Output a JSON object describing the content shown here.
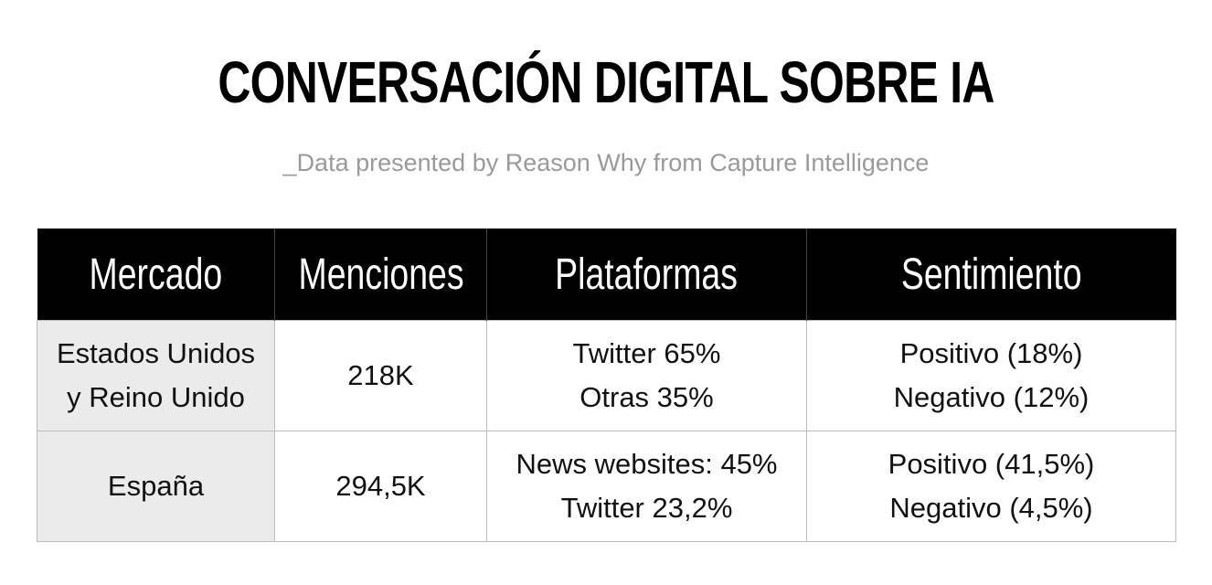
{
  "title": "CONVERSACIÓN DIGITAL SOBRE IA",
  "subtitle": "_Data presented by Reason Why from Capture Intelligence",
  "table": {
    "headers": [
      "Mercado",
      "Menciones",
      "Plataformas",
      "Sentimiento"
    ],
    "rows": [
      {
        "market": [
          "Estados Unidos",
          "y Reino Unido"
        ],
        "mentions": "218K",
        "platforms": [
          "Twitter 65%",
          "Otras 35%"
        ],
        "sentiment": [
          "Positivo (18%)",
          "Negativo (12%)"
        ]
      },
      {
        "market": [
          "España"
        ],
        "mentions": "294,5K",
        "platforms": [
          "News websites: 45%",
          "Twitter 23,2%"
        ],
        "sentiment": [
          "Positivo (41,5%)",
          "Negativo (4,5%)"
        ]
      }
    ]
  },
  "colors": {
    "header_bg": "#000000",
    "header_text": "#ffffff",
    "market_cell_bg": "#ebebeb",
    "subtitle_text": "#9a9a9a",
    "border": "#bdbdbd"
  }
}
